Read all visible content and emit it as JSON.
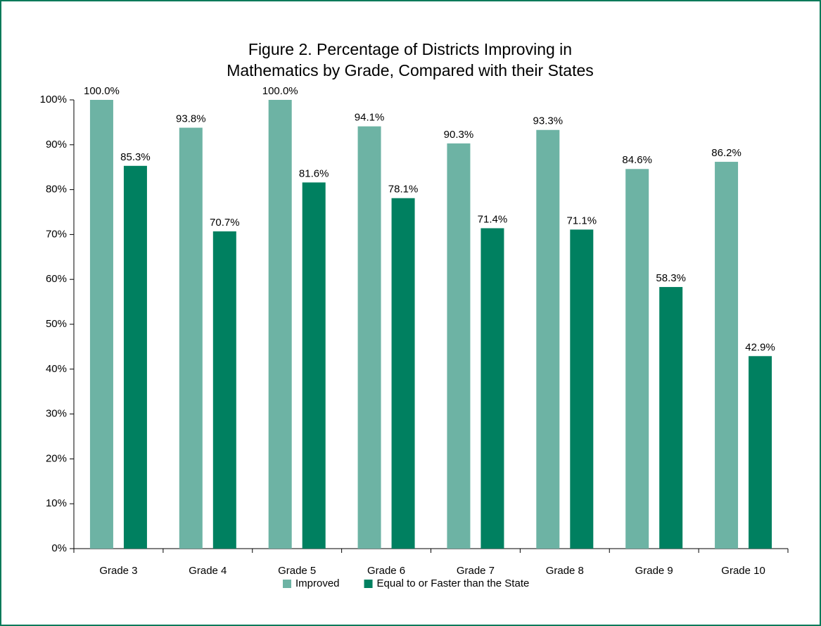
{
  "chart_data": {
    "type": "bar",
    "title": [
      "Figure 2. Percentage of Districts Improving in",
      "Mathematics by Grade, Compared with their States"
    ],
    "categories": [
      "Grade 3",
      "Grade 4",
      "Grade 5",
      "Grade 6",
      "Grade 7",
      "Grade 8",
      "Grade 9",
      "Grade 10"
    ],
    "series": [
      {
        "name": "Improved",
        "color": "#6db3a4",
        "values": [
          100.0,
          93.8,
          100.0,
          94.1,
          90.3,
          93.3,
          84.6,
          86.2
        ],
        "value_labels": [
          "100.0%",
          "93.8%",
          "100.0%",
          "94.1%",
          "90.3%",
          "93.3%",
          "84.6%",
          "86.2%"
        ]
      },
      {
        "name": "Equal to or Faster than the State",
        "color": "#008060",
        "values": [
          85.3,
          70.7,
          81.6,
          78.1,
          71.4,
          71.1,
          58.3,
          42.9
        ],
        "value_labels": [
          "85.3%",
          "70.7%",
          "81.6%",
          "78.1%",
          "71.4%",
          "71.1%",
          "58.3%",
          "42.9%"
        ]
      }
    ],
    "ylim": [
      0,
      100
    ],
    "yticks": [
      {
        "value": 0,
        "label": "0%"
      },
      {
        "value": 10,
        "label": "10%"
      },
      {
        "value": 20,
        "label": "20%"
      },
      {
        "value": 30,
        "label": "30%"
      },
      {
        "value": 40,
        "label": "40%"
      },
      {
        "value": 50,
        "label": "50%"
      },
      {
        "value": 60,
        "label": "60%"
      },
      {
        "value": 70,
        "label": "70%"
      },
      {
        "value": 80,
        "label": "80%"
      },
      {
        "value": 90,
        "label": "90%"
      },
      {
        "value": 100,
        "label": "100%"
      }
    ],
    "grid": false,
    "legend": "bottom"
  }
}
